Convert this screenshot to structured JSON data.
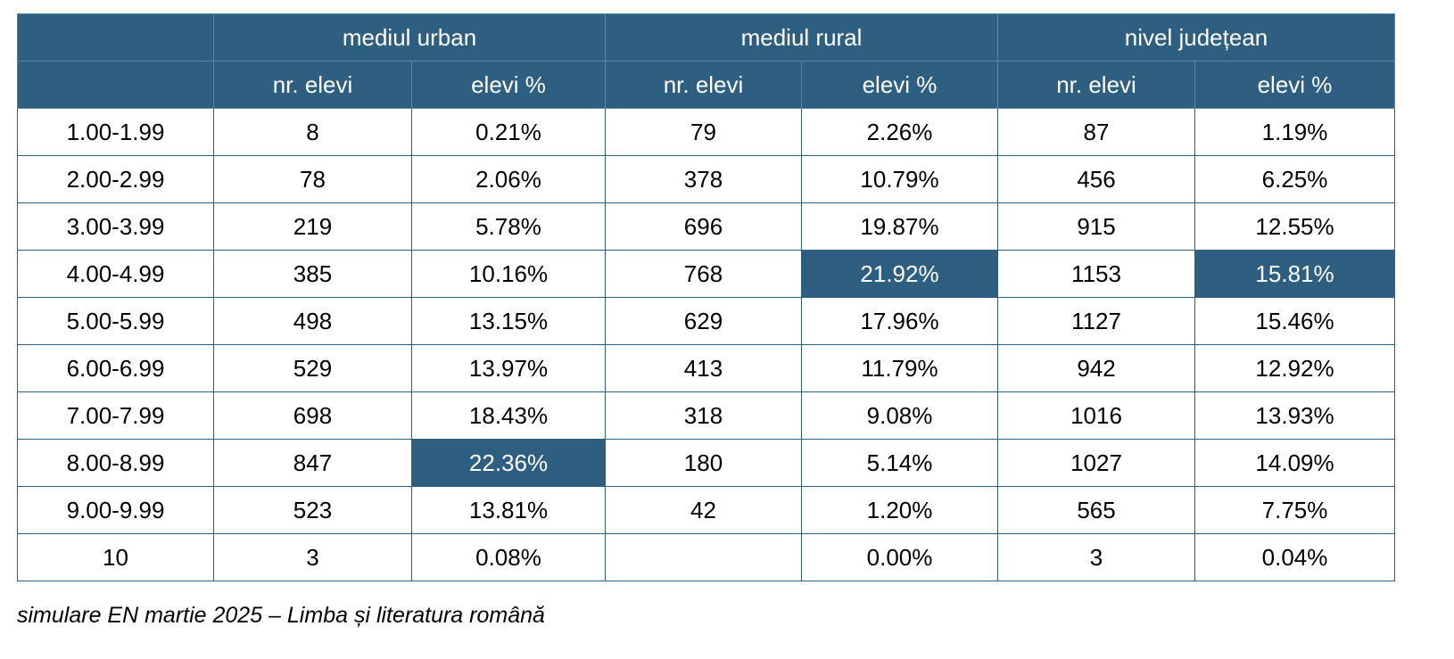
{
  "table": {
    "groups": [
      "mediul urban",
      "mediul rural",
      "nivel județean"
    ],
    "subheaders": [
      "nr. elevi",
      "elevi %",
      "nr. elevi",
      "elevi %",
      "nr. elevi",
      "elevi %"
    ],
    "highlight_color": "#2e5f80",
    "rows": [
      {
        "range": "1.00-1.99",
        "cells": [
          "8",
          "0.21%",
          "79",
          "2.26%",
          "87",
          "1.19%"
        ],
        "highlight": []
      },
      {
        "range": "2.00-2.99",
        "cells": [
          "78",
          "2.06%",
          "378",
          "10.79%",
          "456",
          "6.25%"
        ],
        "highlight": []
      },
      {
        "range": "3.00-3.99",
        "cells": [
          "219",
          "5.78%",
          "696",
          "19.87%",
          "915",
          "12.55%"
        ],
        "highlight": []
      },
      {
        "range": "4.00-4.99",
        "cells": [
          "385",
          "10.16%",
          "768",
          "21.92%",
          "1153",
          "15.81%"
        ],
        "highlight": [
          3,
          5
        ]
      },
      {
        "range": "5.00-5.99",
        "cells": [
          "498",
          "13.15%",
          "629",
          "17.96%",
          "1127",
          "15.46%"
        ],
        "highlight": []
      },
      {
        "range": "6.00-6.99",
        "cells": [
          "529",
          "13.97%",
          "413",
          "11.79%",
          "942",
          "12.92%"
        ],
        "highlight": []
      },
      {
        "range": "7.00-7.99",
        "cells": [
          "698",
          "18.43%",
          "318",
          "9.08%",
          "1016",
          "13.93%"
        ],
        "highlight": []
      },
      {
        "range": "8.00-8.99",
        "cells": [
          "847",
          "22.36%",
          "180",
          "5.14%",
          "1027",
          "14.09%"
        ],
        "highlight": [
          1
        ]
      },
      {
        "range": "9.00-9.99",
        "cells": [
          "523",
          "13.81%",
          "42",
          "1.20%",
          "565",
          "7.75%"
        ],
        "highlight": []
      },
      {
        "range": "10",
        "cells": [
          "3",
          "0.08%",
          "",
          "0.00%",
          "3",
          "0.04%"
        ],
        "highlight": []
      }
    ]
  },
  "caption": "simulare EN martie 2025 – Limba și literatura română"
}
